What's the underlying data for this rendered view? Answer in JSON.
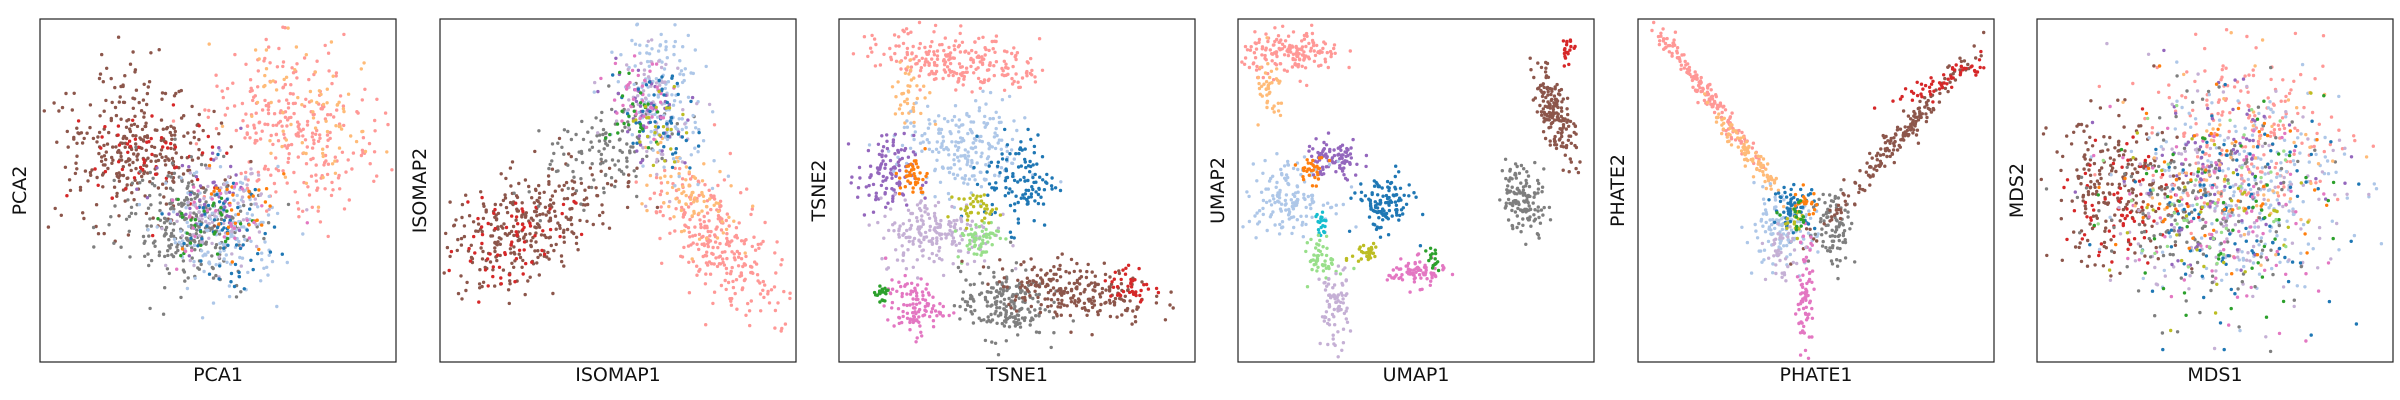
{
  "palette": {
    "blue": "#1f77b4",
    "light_blue": "#aec7e8",
    "orange": "#ff7f0e",
    "light_orange": "#ffbb78",
    "green": "#2ca02c",
    "light_green": "#98df8a",
    "red": "#d62728",
    "salmon": "#ff9896",
    "purple": "#9467bd",
    "lavender": "#c5b0d5",
    "brown": "#8c564b",
    "pink": "#e377c2",
    "gray": "#7f7f7f",
    "olive": "#bcbd22",
    "cyan": "#17becf"
  },
  "chart_data": [
    {
      "type": "scatter",
      "xlabel": "PCA1",
      "ylabel": "PCA2",
      "xticks": [],
      "yticks": [],
      "xlim": [
        0,
        1
      ],
      "ylim": [
        0,
        1
      ],
      "clusters": [
        {
          "color": "salmon",
          "cx": 0.72,
          "cy": 0.68,
          "sx": 0.1,
          "sy": 0.13,
          "n": 280,
          "rot": 0.6
        },
        {
          "color": "light_orange",
          "cx": 0.75,
          "cy": 0.72,
          "sx": 0.09,
          "sy": 0.12,
          "n": 80,
          "rot": 0.6
        },
        {
          "color": "brown",
          "cx": 0.26,
          "cy": 0.62,
          "sx": 0.11,
          "sy": 0.1,
          "n": 320,
          "rot": -0.4
        },
        {
          "color": "red",
          "cx": 0.3,
          "cy": 0.6,
          "sx": 0.1,
          "sy": 0.08,
          "n": 60,
          "rot": -0.4
        },
        {
          "color": "gray",
          "cx": 0.42,
          "cy": 0.4,
          "sx": 0.1,
          "sy": 0.08,
          "n": 260,
          "rot": -0.3
        },
        {
          "color": "light_blue",
          "cx": 0.52,
          "cy": 0.38,
          "sx": 0.08,
          "sy": 0.09,
          "n": 160,
          "rot": 0
        },
        {
          "color": "lavender",
          "cx": 0.5,
          "cy": 0.42,
          "sx": 0.07,
          "sy": 0.07,
          "n": 80,
          "rot": 0
        },
        {
          "color": "blue",
          "cx": 0.52,
          "cy": 0.38,
          "sx": 0.07,
          "sy": 0.08,
          "n": 60,
          "rot": 0
        },
        {
          "color": "purple",
          "cx": 0.48,
          "cy": 0.45,
          "sx": 0.07,
          "sy": 0.07,
          "n": 40,
          "rot": 0
        },
        {
          "color": "green",
          "cx": 0.47,
          "cy": 0.4,
          "sx": 0.06,
          "sy": 0.06,
          "n": 30,
          "rot": 0
        },
        {
          "color": "orange",
          "cx": 0.55,
          "cy": 0.45,
          "sx": 0.07,
          "sy": 0.07,
          "n": 30,
          "rot": 0
        },
        {
          "color": "pink",
          "cx": 0.5,
          "cy": 0.4,
          "sx": 0.07,
          "sy": 0.07,
          "n": 30,
          "rot": 0
        }
      ]
    },
    {
      "type": "scatter",
      "xlabel": "ISOMAP1",
      "ylabel": "ISOMAP2",
      "xticks": [],
      "yticks": [],
      "xlim": [
        0,
        1
      ],
      "ylim": [
        0,
        1
      ],
      "clusters": [
        {
          "color": "brown",
          "cx": 0.25,
          "cy": 0.4,
          "sx": 0.14,
          "sy": 0.07,
          "n": 320,
          "rot": 0.55
        },
        {
          "color": "red",
          "cx": 0.2,
          "cy": 0.36,
          "sx": 0.1,
          "sy": 0.06,
          "n": 70,
          "rot": 0.55
        },
        {
          "color": "gray",
          "cx": 0.45,
          "cy": 0.62,
          "sx": 0.1,
          "sy": 0.06,
          "n": 120,
          "rot": 0.6
        },
        {
          "color": "salmon",
          "cx": 0.78,
          "cy": 0.35,
          "sx": 0.12,
          "sy": 0.06,
          "n": 280,
          "rot": -0.95
        },
        {
          "color": "light_orange",
          "cx": 0.7,
          "cy": 0.48,
          "sx": 0.08,
          "sy": 0.05,
          "n": 80,
          "rot": -1.0
        },
        {
          "color": "light_blue",
          "cx": 0.62,
          "cy": 0.78,
          "sx": 0.06,
          "sy": 0.12,
          "n": 160,
          "rot": 0.2
        },
        {
          "color": "lavender",
          "cx": 0.6,
          "cy": 0.74,
          "sx": 0.06,
          "sy": 0.1,
          "n": 70,
          "rot": 0.2
        },
        {
          "color": "purple",
          "cx": 0.58,
          "cy": 0.72,
          "sx": 0.05,
          "sy": 0.07,
          "n": 50,
          "rot": 0.2
        },
        {
          "color": "blue",
          "cx": 0.62,
          "cy": 0.7,
          "sx": 0.05,
          "sy": 0.07,
          "n": 50,
          "rot": 0.2
        },
        {
          "color": "pink",
          "cx": 0.56,
          "cy": 0.78,
          "sx": 0.04,
          "sy": 0.06,
          "n": 40,
          "rot": 0.2
        },
        {
          "color": "green",
          "cx": 0.54,
          "cy": 0.72,
          "sx": 0.04,
          "sy": 0.05,
          "n": 25,
          "rot": 0.2
        },
        {
          "color": "olive",
          "cx": 0.6,
          "cy": 0.68,
          "sx": 0.04,
          "sy": 0.05,
          "n": 25,
          "rot": 0.2
        }
      ]
    },
    {
      "type": "scatter",
      "xlabel": "TSNE1",
      "ylabel": "TSNE2",
      "xticks": [],
      "yticks": [],
      "xlim": [
        0,
        1
      ],
      "ylim": [
        0,
        1
      ],
      "clusters": [
        {
          "color": "salmon",
          "cx": 0.34,
          "cy": 0.88,
          "sx": 0.11,
          "sy": 0.04,
          "n": 240,
          "rot": -0.15
        },
        {
          "color": "light_orange",
          "cx": 0.2,
          "cy": 0.78,
          "sx": 0.03,
          "sy": 0.05,
          "n": 40,
          "rot": 0
        },
        {
          "color": "light_blue",
          "cx": 0.35,
          "cy": 0.62,
          "sx": 0.09,
          "sy": 0.07,
          "n": 220,
          "rot": 0
        },
        {
          "color": "purple",
          "cx": 0.13,
          "cy": 0.54,
          "sx": 0.04,
          "sy": 0.06,
          "n": 110,
          "rot": 0
        },
        {
          "color": "blue",
          "cx": 0.51,
          "cy": 0.53,
          "sx": 0.05,
          "sy": 0.07,
          "n": 120,
          "rot": 0
        },
        {
          "color": "lavender",
          "cx": 0.27,
          "cy": 0.38,
          "sx": 0.08,
          "sy": 0.05,
          "n": 200,
          "rot": 0
        },
        {
          "color": "light_green",
          "cx": 0.39,
          "cy": 0.36,
          "sx": 0.03,
          "sy": 0.03,
          "n": 60,
          "rot": 0
        },
        {
          "color": "olive",
          "cx": 0.39,
          "cy": 0.45,
          "sx": 0.03,
          "sy": 0.02,
          "n": 40,
          "rot": 0
        },
        {
          "color": "orange",
          "cx": 0.21,
          "cy": 0.54,
          "sx": 0.02,
          "sy": 0.03,
          "n": 40,
          "rot": 0
        },
        {
          "color": "pink",
          "cx": 0.21,
          "cy": 0.16,
          "sx": 0.04,
          "sy": 0.04,
          "n": 110,
          "rot": 0
        },
        {
          "color": "green",
          "cx": 0.12,
          "cy": 0.2,
          "sx": 0.01,
          "sy": 0.02,
          "n": 20,
          "rot": 0
        },
        {
          "color": "gray",
          "cx": 0.46,
          "cy": 0.17,
          "sx": 0.06,
          "sy": 0.05,
          "n": 200,
          "rot": 0
        },
        {
          "color": "brown",
          "cx": 0.66,
          "cy": 0.21,
          "sx": 0.11,
          "sy": 0.04,
          "n": 240,
          "rot": -0.15
        },
        {
          "color": "red",
          "cx": 0.82,
          "cy": 0.22,
          "sx": 0.03,
          "sy": 0.03,
          "n": 40,
          "rot": 0
        }
      ]
    },
    {
      "type": "scatter",
      "xlabel": "UMAP1",
      "ylabel": "UMAP2",
      "xticks": [],
      "yticks": [],
      "xlim": [
        0,
        1
      ],
      "ylim": [
        0,
        1
      ],
      "clusters": [
        {
          "color": "salmon",
          "cx": 0.15,
          "cy": 0.9,
          "sx": 0.07,
          "sy": 0.03,
          "n": 170,
          "rot": 0
        },
        {
          "color": "light_orange",
          "cx": 0.09,
          "cy": 0.78,
          "sx": 0.02,
          "sy": 0.05,
          "n": 40,
          "rot": 0
        },
        {
          "color": "purple",
          "cx": 0.27,
          "cy": 0.59,
          "sx": 0.04,
          "sy": 0.03,
          "n": 90,
          "rot": 0
        },
        {
          "color": "light_blue",
          "cx": 0.14,
          "cy": 0.48,
          "sx": 0.06,
          "sy": 0.05,
          "n": 150,
          "rot": 0
        },
        {
          "color": "orange",
          "cx": 0.21,
          "cy": 0.56,
          "sx": 0.02,
          "sy": 0.02,
          "n": 30,
          "rot": 0
        },
        {
          "color": "blue",
          "cx": 0.41,
          "cy": 0.46,
          "sx": 0.04,
          "sy": 0.04,
          "n": 120,
          "rot": 0
        },
        {
          "color": "cyan",
          "cx": 0.23,
          "cy": 0.4,
          "sx": 0.01,
          "sy": 0.02,
          "n": 20,
          "rot": 0
        },
        {
          "color": "light_green",
          "cx": 0.24,
          "cy": 0.3,
          "sx": 0.02,
          "sy": 0.03,
          "n": 50,
          "rot": 0
        },
        {
          "color": "olive",
          "cx": 0.36,
          "cy": 0.32,
          "sx": 0.02,
          "sy": 0.02,
          "n": 30,
          "rot": 0
        },
        {
          "color": "pink",
          "cx": 0.5,
          "cy": 0.26,
          "sx": 0.04,
          "sy": 0.02,
          "n": 80,
          "rot": 0
        },
        {
          "color": "green",
          "cx": 0.55,
          "cy": 0.3,
          "sx": 0.01,
          "sy": 0.02,
          "n": 15,
          "rot": 0
        },
        {
          "color": "lavender",
          "cx": 0.27,
          "cy": 0.16,
          "sx": 0.02,
          "sy": 0.06,
          "n": 80,
          "rot": 0
        },
        {
          "color": "brown",
          "cx": 0.89,
          "cy": 0.72,
          "sx": 0.07,
          "sy": 0.02,
          "n": 170,
          "rot": -1.25
        },
        {
          "color": "red",
          "cx": 0.93,
          "cy": 0.91,
          "sx": 0.01,
          "sy": 0.02,
          "n": 20,
          "rot": 0
        },
        {
          "color": "gray",
          "cx": 0.8,
          "cy": 0.48,
          "sx": 0.03,
          "sy": 0.05,
          "n": 130,
          "rot": 0.2
        }
      ]
    },
    {
      "type": "scatter",
      "xlabel": "PHATE1",
      "ylabel": "PHATE2",
      "xticks": [],
      "yticks": [],
      "xlim": [
        0,
        1
      ],
      "ylim": [
        0,
        1
      ],
      "clusters": [
        {
          "color": "salmon",
          "cx": 0.18,
          "cy": 0.8,
          "sx": 0.14,
          "sy": 0.012,
          "n": 170,
          "rot": -0.93
        },
        {
          "color": "light_orange",
          "cx": 0.3,
          "cy": 0.62,
          "sx": 0.1,
          "sy": 0.012,
          "n": 90,
          "rot": -0.93
        },
        {
          "color": "light_blue",
          "cx": 0.4,
          "cy": 0.38,
          "sx": 0.05,
          "sy": 0.05,
          "n": 120,
          "rot": 0
        },
        {
          "color": "blue",
          "cx": 0.44,
          "cy": 0.45,
          "sx": 0.03,
          "sy": 0.03,
          "n": 60,
          "rot": 0
        },
        {
          "color": "gray",
          "cx": 0.55,
          "cy": 0.4,
          "sx": 0.03,
          "sy": 0.06,
          "n": 90,
          "rot": 0
        },
        {
          "color": "brown",
          "cx": 0.74,
          "cy": 0.66,
          "sx": 0.18,
          "sy": 0.015,
          "n": 190,
          "rot": 0.88
        },
        {
          "color": "red",
          "cx": 0.86,
          "cy": 0.82,
          "sx": 0.07,
          "sy": 0.015,
          "n": 60,
          "rot": 0.45
        },
        {
          "color": "pink",
          "cx": 0.47,
          "cy": 0.18,
          "sx": 0.012,
          "sy": 0.09,
          "n": 80,
          "rot": 0
        },
        {
          "color": "lavender",
          "cx": 0.4,
          "cy": 0.32,
          "sx": 0.02,
          "sy": 0.04,
          "n": 40,
          "rot": 0
        },
        {
          "color": "orange",
          "cx": 0.47,
          "cy": 0.46,
          "sx": 0.02,
          "sy": 0.02,
          "n": 20,
          "rot": 0
        },
        {
          "color": "olive",
          "cx": 0.44,
          "cy": 0.4,
          "sx": 0.02,
          "sy": 0.02,
          "n": 15,
          "rot": 0
        },
        {
          "color": "green",
          "cx": 0.45,
          "cy": 0.42,
          "sx": 0.02,
          "sy": 0.02,
          "n": 15,
          "rot": 0
        }
      ]
    },
    {
      "type": "scatter",
      "xlabel": "MDS1",
      "ylabel": "MDS2",
      "xticks": [],
      "yticks": [],
      "xlim": [
        0,
        1
      ],
      "ylim": [
        0,
        1
      ],
      "clusters": [
        {
          "color": "brown",
          "cx": 0.22,
          "cy": 0.5,
          "sx": 0.09,
          "sy": 0.11,
          "n": 220,
          "rot": 0
        },
        {
          "color": "red",
          "cx": 0.26,
          "cy": 0.48,
          "sx": 0.09,
          "sy": 0.1,
          "n": 80,
          "rot": 0
        },
        {
          "color": "salmon",
          "cx": 0.6,
          "cy": 0.66,
          "sx": 0.14,
          "sy": 0.12,
          "n": 200,
          "rot": 0
        },
        {
          "color": "light_blue",
          "cx": 0.56,
          "cy": 0.52,
          "sx": 0.15,
          "sy": 0.15,
          "n": 220,
          "rot": 0
        },
        {
          "color": "lavender",
          "cx": 0.55,
          "cy": 0.45,
          "sx": 0.15,
          "sy": 0.15,
          "n": 160,
          "rot": 0
        },
        {
          "color": "gray",
          "cx": 0.45,
          "cy": 0.45,
          "sx": 0.14,
          "sy": 0.15,
          "n": 180,
          "rot": 0
        },
        {
          "color": "blue",
          "cx": 0.55,
          "cy": 0.45,
          "sx": 0.15,
          "sy": 0.15,
          "n": 100,
          "rot": 0
        },
        {
          "color": "purple",
          "cx": 0.5,
          "cy": 0.55,
          "sx": 0.14,
          "sy": 0.14,
          "n": 80,
          "rot": 0
        },
        {
          "color": "pink",
          "cx": 0.52,
          "cy": 0.4,
          "sx": 0.15,
          "sy": 0.15,
          "n": 80,
          "rot": 0
        },
        {
          "color": "light_orange",
          "cx": 0.58,
          "cy": 0.6,
          "sx": 0.14,
          "sy": 0.14,
          "n": 60,
          "rot": 0
        },
        {
          "color": "green",
          "cx": 0.5,
          "cy": 0.45,
          "sx": 0.15,
          "sy": 0.15,
          "n": 50,
          "rot": 0
        },
        {
          "color": "orange",
          "cx": 0.52,
          "cy": 0.52,
          "sx": 0.15,
          "sy": 0.15,
          "n": 50,
          "rot": 0
        },
        {
          "color": "olive",
          "cx": 0.5,
          "cy": 0.45,
          "sx": 0.14,
          "sy": 0.14,
          "n": 40,
          "rot": 0
        },
        {
          "color": "light_green",
          "cx": 0.5,
          "cy": 0.5,
          "sx": 0.14,
          "sy": 0.14,
          "n": 40,
          "rot": 0
        }
      ]
    }
  ]
}
